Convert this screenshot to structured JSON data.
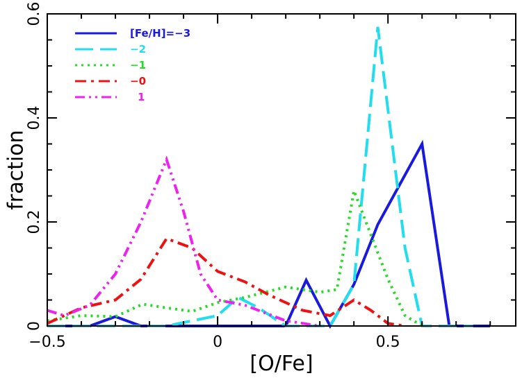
{
  "chart_data": {
    "type": "line",
    "title": "",
    "xlabel": "[O/Fe]",
    "ylabel": "fraction",
    "xlim": [
      -0.5,
      0.875
    ],
    "ylim": [
      0,
      0.6
    ],
    "xticks": [
      -0.5,
      0,
      0.5
    ],
    "xtick_labels": [
      "−0.5",
      "0",
      "0.5"
    ],
    "yticks": [
      0,
      0.2,
      0.4,
      0.6
    ],
    "ytick_labels": [
      "0",
      "0.2",
      "0.4",
      "0.6"
    ],
    "grid": false,
    "legend_position": "top-left",
    "series": [
      {
        "name": "[Fe/H]=−3",
        "color": "#1a1adc",
        "dash": "solid",
        "x": [
          -0.5,
          -0.375,
          -0.3,
          -0.225,
          -0.15,
          0.0,
          0.1,
          0.2,
          0.26,
          0.33,
          0.4,
          0.47,
          0.6,
          0.68,
          0.8
        ],
        "y": [
          0,
          0,
          0.018,
          0,
          0,
          0,
          0,
          0,
          0.088,
          0,
          0.08,
          0.195,
          0.35,
          0,
          0
        ]
      },
      {
        "name": "−2",
        "color": "#22ddee",
        "dash": "dash",
        "x": [
          -0.5,
          -0.35,
          -0.15,
          0.0,
          0.06,
          0.12,
          0.2,
          0.33,
          0.4,
          0.47,
          0.55,
          0.6,
          0.75
        ],
        "y": [
          0,
          0,
          0,
          0.02,
          0.055,
          0.035,
          0,
          0,
          0.08,
          0.575,
          0.15,
          0,
          0
        ]
      },
      {
        "name": "−1",
        "color": "#22dd22",
        "dash": "dot",
        "x": [
          -0.5,
          -0.4,
          -0.3,
          -0.22,
          -0.15,
          -0.075,
          0.0,
          0.08,
          0.2,
          0.3,
          0.35,
          0.4,
          0.5,
          0.55,
          0.6
        ],
        "y": [
          0.01,
          0.02,
          0.018,
          0.042,
          0.035,
          0.028,
          0.045,
          0.055,
          0.075,
          0.065,
          0.07,
          0.26,
          0.09,
          0.02,
          0
        ]
      },
      {
        "name": "−0",
        "color": "#ee1111",
        "dash": "dashdot",
        "x": [
          -0.5,
          -0.4,
          -0.3,
          -0.225,
          -0.15,
          -0.075,
          0.0,
          0.08,
          0.15,
          0.25,
          0.33,
          0.4,
          0.45,
          0.5,
          0.55
        ],
        "y": [
          0.005,
          0.035,
          0.05,
          0.09,
          0.168,
          0.15,
          0.105,
          0.085,
          0.06,
          0.03,
          0.02,
          0.05,
          0.03,
          0.005,
          0
        ]
      },
      {
        "name": "1",
        "color": "#ee22ee",
        "dash": "dashdotdot",
        "x": [
          -0.5,
          -0.45,
          -0.375,
          -0.3,
          -0.225,
          -0.15,
          -0.1,
          -0.05,
          0.0,
          0.08,
          0.2,
          0.3
        ],
        "y": [
          0.03,
          0.02,
          0.04,
          0.1,
          0.2,
          0.32,
          0.22,
          0.1,
          0.05,
          0.04,
          0.01,
          0
        ]
      }
    ]
  }
}
